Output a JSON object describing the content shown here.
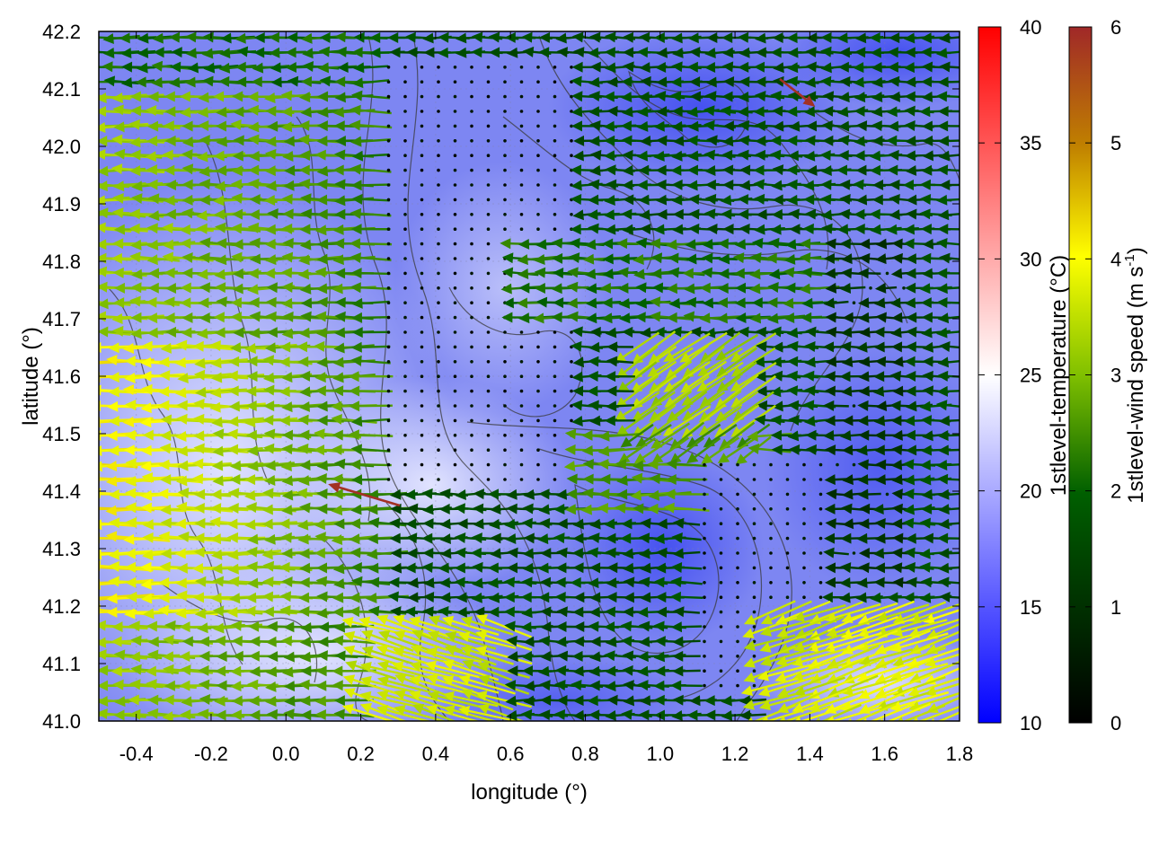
{
  "chart_data": {
    "type": "heatmap",
    "subtype": "map with wind vectors and contours",
    "xlabel": "longitude (°)",
    "ylabel": "latitude (°)",
    "xlim": [
      -0.5,
      1.8
    ],
    "ylim": [
      41.0,
      42.2
    ],
    "xticks": [
      "-0.4",
      "-0.2",
      "0.0",
      "0.2",
      "0.4",
      "0.6",
      "0.8",
      "1.0",
      "1.2",
      "1.4",
      "1.6",
      "1.8"
    ],
    "yticks": [
      "41.0",
      "41.1",
      "41.2",
      "41.3",
      "41.4",
      "41.5",
      "41.6",
      "41.7",
      "41.8",
      "41.9",
      "42.0",
      "42.1",
      "42.2"
    ],
    "grid": true,
    "temperature_colorbar": {
      "label": "1stlevel-temperature (°C)",
      "range": [
        10,
        40
      ],
      "ticks": [
        "10",
        "15",
        "20",
        "25",
        "30",
        "35",
        "40"
      ],
      "colors": [
        "#0000ff",
        "#ffffff",
        "#ff0000"
      ]
    },
    "wind_colorbar": {
      "label_main": "1stlevel-wind speed (m s",
      "label_sup": "-1",
      "label_end": ")",
      "range": [
        0,
        6
      ],
      "ticks": [
        "0",
        "1",
        "2",
        "3",
        "4",
        "5",
        "6"
      ],
      "colors": [
        "#000000",
        "#005f00",
        "#80c000",
        "#ffff00",
        "#c08000",
        "#a02828"
      ]
    },
    "temperature_field_approx_c": {
      "background_range": [
        14,
        22
      ],
      "note": ""
    }
  }
}
